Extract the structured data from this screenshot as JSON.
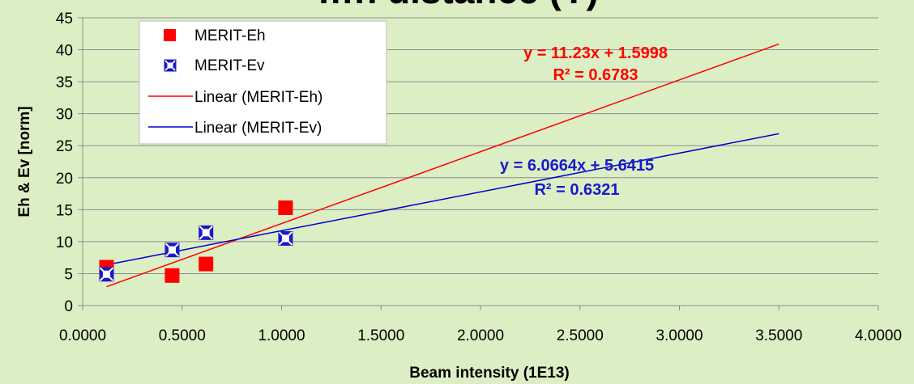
{
  "chart_data": {
    "type": "scatter",
    "title": "…n distance (Y)",
    "xlabel": "Beam intensity (1E13)",
    "ylabel": "Eh & Ev  [norm]",
    "xlim": [
      0,
      4
    ],
    "ylim": [
      0,
      45
    ],
    "x_ticks": [
      "0.0000",
      "0.5000",
      "1.0000",
      "1.5000",
      "2.0000",
      "2.5000",
      "3.0000",
      "3.5000",
      "4.0000"
    ],
    "y_ticks": [
      "0",
      "5",
      "10",
      "15",
      "20",
      "25",
      "30",
      "35",
      "40",
      "45"
    ],
    "x_tick_values": [
      0,
      0.5,
      1,
      1.5,
      2,
      2.5,
      3,
      3.5,
      4
    ],
    "y_tick_values": [
      0,
      5,
      10,
      15,
      20,
      25,
      30,
      35,
      40,
      45
    ],
    "grid": "horizontal",
    "legend_position": "top-left",
    "series": [
      {
        "name": "MERIT-Eh",
        "marker": "square",
        "color": "#ff0000",
        "points": [
          [
            0.12,
            6.0
          ],
          [
            0.45,
            4.7
          ],
          [
            0.62,
            6.5
          ],
          [
            1.02,
            15.3
          ]
        ]
      },
      {
        "name": "MERIT-Ev",
        "marker": "square-x",
        "color": "#1a1acc",
        "points": [
          [
            0.12,
            4.9
          ],
          [
            0.45,
            8.7
          ],
          [
            0.62,
            11.4
          ],
          [
            1.02,
            10.5
          ]
        ]
      }
    ],
    "trendlines": [
      {
        "name": "Linear (MERIT-Eh)",
        "color": "#ff0000",
        "slope": 11.23,
        "intercept": 1.5998,
        "x_range": [
          0.12,
          3.5
        ],
        "equation": "y = 11.23x + 1.5998",
        "r2": "R² = 0.6783"
      },
      {
        "name": "Linear (MERIT-Ev)",
        "color": "#0000cc",
        "slope": 6.0664,
        "intercept": 5.6415,
        "x_range": [
          0.12,
          3.5
        ],
        "equation": "y = 6.0664x + 5.6415",
        "r2": "R² = 0.6321"
      }
    ]
  }
}
